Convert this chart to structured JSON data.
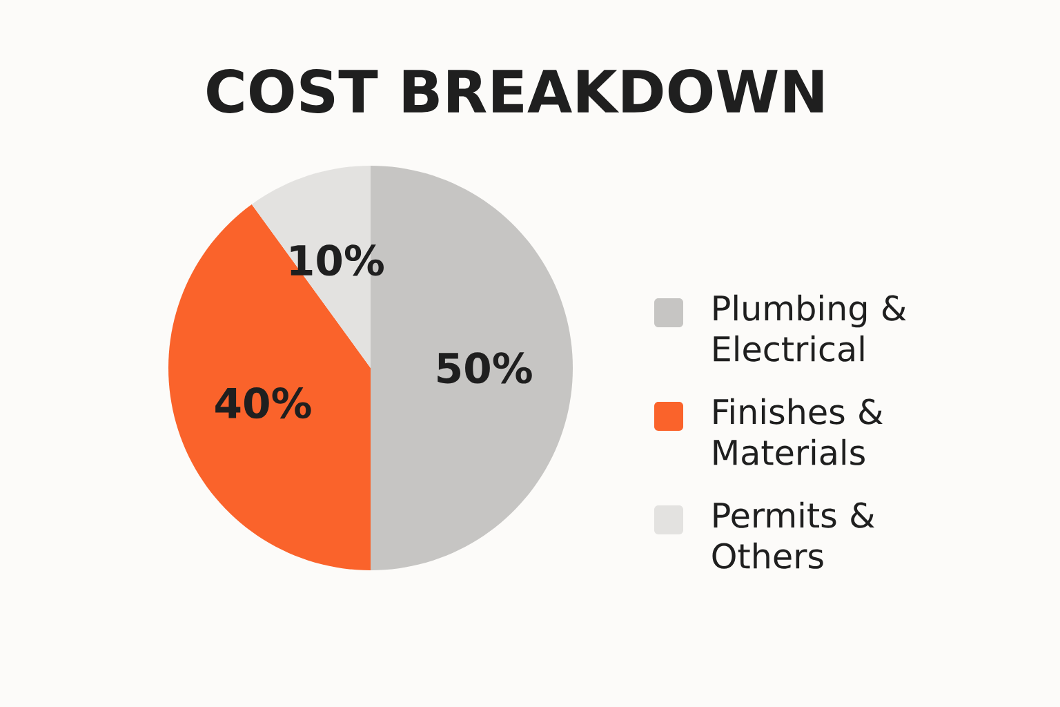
{
  "chart_data": {
    "type": "pie",
    "title": "COST BREAKDOWN",
    "categories": [
      "Plumbing & Electrical",
      "Finishes & Materials",
      "Permits & Others"
    ],
    "values": [
      50,
      40,
      10
    ],
    "value_labels": [
      "50%",
      "40%",
      "10%"
    ],
    "colors": [
      "#c6c5c3",
      "#fa632b",
      "#e3e2e0"
    ],
    "legend": "right"
  }
}
